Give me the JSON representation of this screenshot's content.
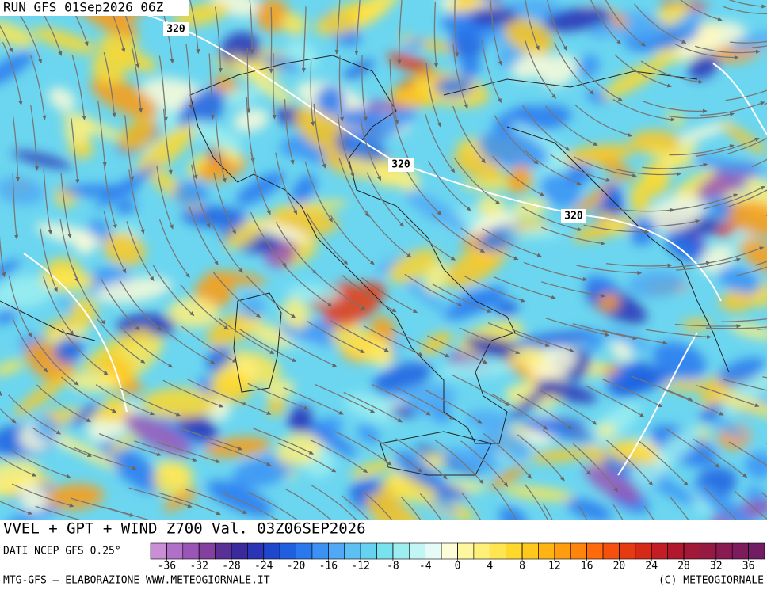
{
  "header": {
    "run": "RUN GFS 01Sep2026 06Z"
  },
  "contour_labels": [
    "320",
    "320",
    "320"
  ],
  "footer": {
    "product": "VVEL + GPT + WIND Z700 Val. 03Z06SEP2026",
    "source": "DATI NCEP GFS 0.25°",
    "credit": "MTG-GFS — ELABORAZIONE WWW.METEOGIORNALE.IT",
    "copyright": "(C) METEOGIORNALE"
  },
  "colorbar": {
    "range": [
      -38,
      38
    ],
    "ticks": [
      -36,
      -32,
      -28,
      -24,
      -20,
      -16,
      -12,
      -8,
      -4,
      0,
      4,
      8,
      12,
      16,
      20,
      24,
      28,
      32,
      36
    ],
    "colors": [
      "#c88fd6",
      "#b070c8",
      "#9a55b6",
      "#84409f",
      "#5a2f96",
      "#3a2a9c",
      "#2b34b4",
      "#1f47cc",
      "#1f5fe0",
      "#2a78ee",
      "#3b92f4",
      "#4fa9f6",
      "#5cc0f4",
      "#64d2f0",
      "#78e2ee",
      "#9ceef0",
      "#c2f6f4",
      "#e6fbf8",
      "#fcfcd8",
      "#fff6a0",
      "#fff07a",
      "#ffe650",
      "#ffd82c",
      "#ffc81c",
      "#ffb414",
      "#ff9c10",
      "#ff840c",
      "#ff6a0c",
      "#f5500e",
      "#e63a12",
      "#d52a18",
      "#c21e24",
      "#b0182e",
      "#a11838",
      "#941a44",
      "#8a1a52",
      "#7e1b5c",
      "#731c66"
    ]
  }
}
